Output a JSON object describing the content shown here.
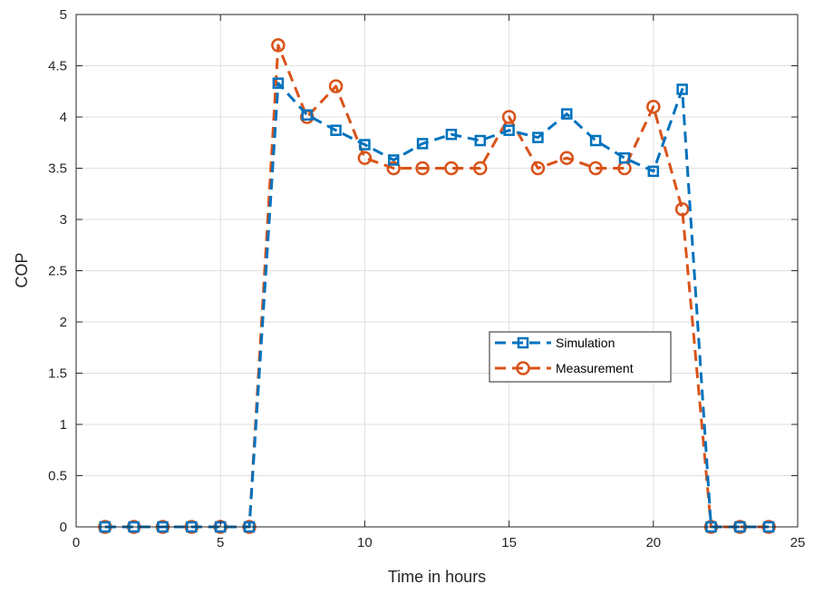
{
  "chart_data": {
    "type": "line",
    "xlabel": "Time in hours",
    "ylabel": "COP",
    "xlim": [
      0,
      25
    ],
    "ylim": [
      0,
      5
    ],
    "xticks": [
      0,
      5,
      10,
      15,
      20,
      25
    ],
    "yticks": [
      0,
      0.5,
      1,
      1.5,
      2,
      2.5,
      3,
      3.5,
      4,
      4.5,
      5
    ],
    "xtick_labels": [
      "0",
      "5",
      "10",
      "15",
      "20",
      "25"
    ],
    "ytick_labels": [
      "0",
      "0.5",
      "1",
      "1.5",
      "2",
      "2.5",
      "3",
      "3.5",
      "4",
      "4.5",
      "5"
    ],
    "grid": true,
    "legend_position": "center-right",
    "x": [
      1,
      2,
      3,
      4,
      5,
      6,
      7,
      8,
      9,
      10,
      11,
      12,
      13,
      14,
      15,
      16,
      17,
      18,
      19,
      20,
      21,
      22,
      23,
      24
    ],
    "series": [
      {
        "name": "Simulation",
        "color": "#0072BD",
        "marker": "square",
        "line_style": "dashed",
        "values": [
          0,
          0,
          0,
          0,
          0,
          0,
          4.33,
          4.02,
          3.87,
          3.73,
          3.58,
          3.74,
          3.83,
          3.77,
          3.87,
          3.8,
          4.03,
          3.77,
          3.6,
          3.47,
          4.27,
          0,
          0,
          0
        ]
      },
      {
        "name": "Measurement",
        "color": "#D95319",
        "marker": "circle",
        "line_style": "dashed",
        "values": [
          0,
          0,
          0,
          0,
          0,
          0,
          4.7,
          4.0,
          4.3,
          3.6,
          3.5,
          3.5,
          3.5,
          3.5,
          4.0,
          3.5,
          3.6,
          3.5,
          3.5,
          4.1,
          3.1,
          0,
          0,
          0
        ]
      }
    ]
  }
}
